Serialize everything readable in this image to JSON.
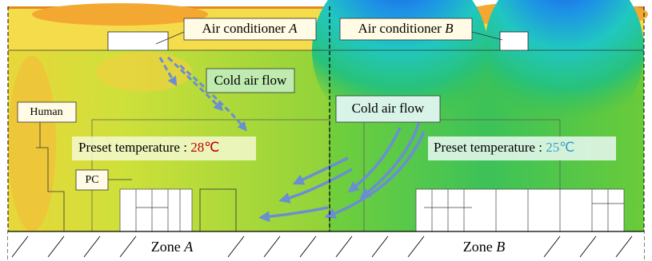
{
  "labels": {
    "ac_a": {
      "text": "Air conditioner",
      "letter": "A"
    },
    "ac_b": {
      "text": "Air conditioner",
      "letter": "B"
    },
    "flow_left": "Cold air flow",
    "flow_right": "Cold air flow",
    "human": "Human",
    "pc": "PC",
    "preset_a": {
      "text": "Preset temperature",
      "colon": ":",
      "value": "28℃"
    },
    "preset_b": {
      "text": "Preset temperature",
      "colon": ":",
      "value": "25℃"
    },
    "zone_a": {
      "text": "Zone",
      "letter": "A"
    },
    "zone_b": {
      "text": "Zone",
      "letter": "B"
    }
  }
}
